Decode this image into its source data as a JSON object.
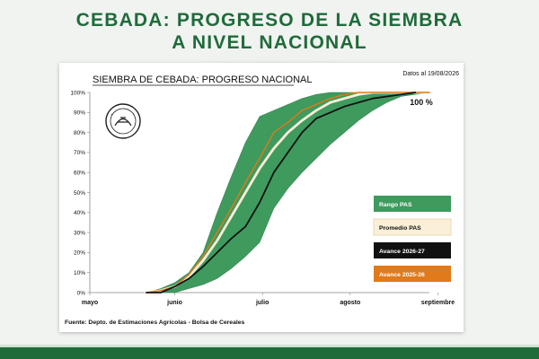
{
  "page": {
    "headline_line1": "CEBADA: PROGRESO DE LA SIEMBRA",
    "headline_line2": "A NIVEL NACIONAL"
  },
  "colors": {
    "headline": "#1f6b3a",
    "rango": "#3f9a5e",
    "promedio": "#fbefd8",
    "avance_actual": "#111111",
    "avance_anterior": "#e07a1a"
  },
  "chart_data": {
    "type": "line",
    "title": "SIEMBRA DE CEBADA: PROGRESO NACIONAL",
    "date_note": "Datos al 19/08/2026",
    "source": "Fuente: Depto. de Estimaciones Agrícolas - Bolsa de Cereales",
    "end_label": "100 %",
    "xlim": [
      0,
      120
    ],
    "ylim": [
      0,
      100
    ],
    "x_ticks": [
      {
        "label": "mayo",
        "value": 0
      },
      {
        "label": "junio",
        "value": 30
      },
      {
        "label": "julio",
        "value": 61
      },
      {
        "label": "agosto",
        "value": 92
      },
      {
        "label": "septiembre",
        "value": 123
      }
    ],
    "y_ticks": [
      {
        "label": "0%",
        "value": 0
      },
      {
        "label": "10%",
        "value": 10
      },
      {
        "label": "20%",
        "value": 20
      },
      {
        "label": "30%",
        "value": 30
      },
      {
        "label": "40%",
        "value": 40
      },
      {
        "label": "50%",
        "value": 50
      },
      {
        "label": "60%",
        "value": 60
      },
      {
        "label": "70%",
        "value": 70
      },
      {
        "label": "80%",
        "value": 80
      },
      {
        "label": "90%",
        "value": 90
      },
      {
        "label": "100%",
        "value": 100
      }
    ],
    "legend": [
      {
        "key": "rango",
        "label": "Rango PAS",
        "text_color": "#ffffff"
      },
      {
        "key": "promedio",
        "label": "Promedio PAS",
        "text_color": "#111111"
      },
      {
        "key": "avance_actual",
        "label": "Avance 2026-27",
        "text_color": "#ffffff"
      },
      {
        "key": "avance_anterior",
        "label": "Avance 2025-26",
        "text_color": "#ffffff"
      }
    ],
    "range_band": {
      "name": "Rango PAS",
      "upper": [
        [
          20,
          0
        ],
        [
          25,
          2
        ],
        [
          30,
          5
        ],
        [
          35,
          10
        ],
        [
          40,
          20
        ],
        [
          45,
          40
        ],
        [
          50,
          58
        ],
        [
          55,
          75
        ],
        [
          60,
          88
        ],
        [
          65,
          91
        ],
        [
          70,
          94
        ],
        [
          75,
          97
        ],
        [
          80,
          99
        ],
        [
          85,
          100
        ],
        [
          95,
          100
        ],
        [
          105,
          100
        ],
        [
          120,
          100
        ]
      ],
      "lower": [
        [
          25,
          0
        ],
        [
          30,
          0
        ],
        [
          35,
          2
        ],
        [
          40,
          4
        ],
        [
          45,
          7
        ],
        [
          50,
          12
        ],
        [
          55,
          18
        ],
        [
          60,
          25
        ],
        [
          65,
          42
        ],
        [
          70,
          52
        ],
        [
          75,
          60
        ],
        [
          80,
          67
        ],
        [
          85,
          74
        ],
        [
          90,
          80
        ],
        [
          95,
          86
        ],
        [
          100,
          91
        ],
        [
          105,
          95
        ],
        [
          110,
          98
        ],
        [
          115,
          99
        ],
        [
          120,
          100
        ]
      ]
    },
    "series": [
      {
        "name": "Promedio PAS",
        "key": "promedio",
        "points": [
          [
            20,
            0
          ],
          [
            25,
            1
          ],
          [
            30,
            3
          ],
          [
            35,
            8
          ],
          [
            40,
            16
          ],
          [
            45,
            26
          ],
          [
            50,
            38
          ],
          [
            55,
            50
          ],
          [
            60,
            62
          ],
          [
            65,
            72
          ],
          [
            70,
            80
          ],
          [
            75,
            86
          ],
          [
            80,
            91
          ],
          [
            85,
            95
          ],
          [
            90,
            97
          ],
          [
            95,
            99
          ],
          [
            100,
            100
          ],
          [
            120,
            100
          ]
        ]
      },
      {
        "name": "Avance 2025-26",
        "key": "avance_anterior",
        "points": [
          [
            20,
            0
          ],
          [
            25,
            1
          ],
          [
            30,
            3
          ],
          [
            35,
            9
          ],
          [
            40,
            18
          ],
          [
            45,
            30
          ],
          [
            50,
            42
          ],
          [
            55,
            55
          ],
          [
            60,
            67
          ],
          [
            65,
            80
          ],
          [
            70,
            85
          ],
          [
            75,
            91
          ],
          [
            80,
            94
          ],
          [
            85,
            97
          ],
          [
            90,
            99
          ],
          [
            95,
            100
          ],
          [
            120,
            100
          ]
        ]
      },
      {
        "name": "Avance 2026-27",
        "key": "avance_actual",
        "points": [
          [
            20,
            0
          ],
          [
            25,
            0
          ],
          [
            30,
            3
          ],
          [
            35,
            7
          ],
          [
            40,
            13
          ],
          [
            45,
            20
          ],
          [
            50,
            27
          ],
          [
            55,
            33
          ],
          [
            60,
            45
          ],
          [
            65,
            60
          ],
          [
            70,
            70
          ],
          [
            75,
            80
          ],
          [
            80,
            87
          ],
          [
            85,
            90
          ],
          [
            90,
            93
          ],
          [
            95,
            95
          ],
          [
            100,
            97
          ],
          [
            105,
            98
          ],
          [
            110,
            99
          ],
          [
            115,
            100
          ]
        ]
      }
    ]
  }
}
